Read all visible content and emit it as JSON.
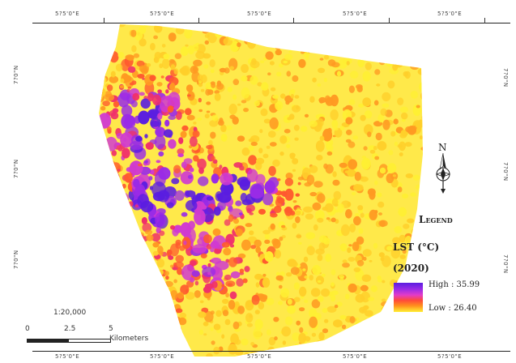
{
  "map": {
    "coords": {
      "top": [
        "5?5'0\"E",
        "5?5'0\"E",
        "5?5'0\"E",
        "5?5'0\"E",
        "5?5'0\"E"
      ],
      "bottom": [
        "5?5'0\"E",
        "5?5'0\"E",
        "5?5'0\"E",
        "5?5'0\"E",
        "5?5'0\"E"
      ],
      "left": [
        "7?0\"N",
        "7?0\"N",
        "7?0\"N"
      ],
      "right": [
        "7?0\"N",
        "7?0\"N",
        "7?0\"N"
      ]
    },
    "colors": {
      "background": "#ffffff",
      "ramp_high": "#5a1de0",
      "ramp_mid": "#ff4a3a",
      "ramp_low": "#ffef33"
    }
  },
  "north_arrow": {
    "label": "N"
  },
  "legend": {
    "title": "Legend",
    "variable": "LST (°C)",
    "year": "(2020)",
    "high_label": "High : 35.99",
    "low_label": "Low : 26.40",
    "high_value": 35.99,
    "low_value": 26.4
  },
  "scale": {
    "ratio": "1:20,000",
    "ticks": [
      "0",
      "2.5",
      "5"
    ],
    "unit": "Kilometers"
  }
}
